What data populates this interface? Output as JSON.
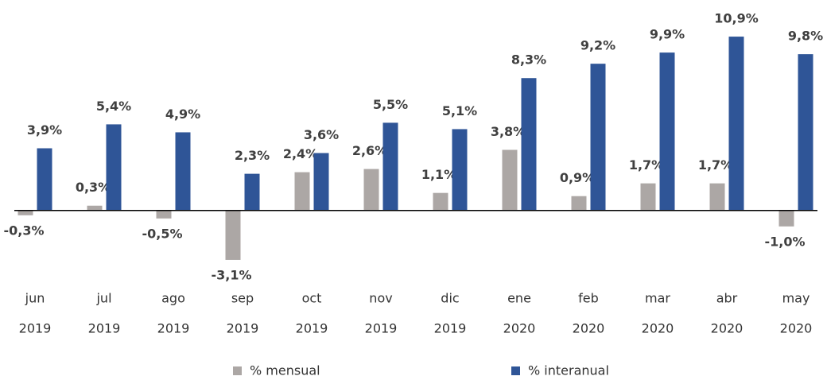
{
  "chart_data": {
    "type": "bar",
    "categories": [
      [
        "jun",
        "2019"
      ],
      [
        "jul",
        "2019"
      ],
      [
        "ago",
        "2019"
      ],
      [
        "sep",
        "2019"
      ],
      [
        "oct",
        "2019"
      ],
      [
        "nov",
        "2019"
      ],
      [
        "dic",
        "2019"
      ],
      [
        "ene",
        "2020"
      ],
      [
        "feb",
        "2020"
      ],
      [
        "mar",
        "2020"
      ],
      [
        "abr",
        "2020"
      ],
      [
        "may",
        "2020"
      ]
    ],
    "series": [
      {
        "name": "% mensual",
        "color": "#aca7a5",
        "values": [
          -0.3,
          0.3,
          -0.5,
          -3.1,
          2.4,
          2.6,
          1.1,
          3.8,
          0.9,
          1.7,
          1.7,
          -1.0
        ],
        "value_labels": [
          "-0,3%",
          "0,3%",
          "-0,5%",
          "-3,1%",
          "2,4%",
          "2,6%",
          "1,1%",
          "3,8%",
          "0,9%",
          "1,7%",
          "1,7%",
          "-1,0%"
        ]
      },
      {
        "name": "% interanual",
        "color": "#2f5597",
        "values": [
          3.9,
          5.4,
          4.9,
          2.3,
          3.6,
          5.5,
          5.1,
          8.3,
          9.2,
          9.9,
          10.9,
          9.8
        ],
        "value_labels": [
          "3,9%",
          "5,4%",
          "4,9%",
          "2,3%",
          "3,6%",
          "5,5%",
          "5,1%",
          "8,3%",
          "9,2%",
          "9,9%",
          "10,9%",
          "9,8%"
        ]
      }
    ],
    "ylim": [
      -4,
      12
    ],
    "legend": "bottom"
  }
}
